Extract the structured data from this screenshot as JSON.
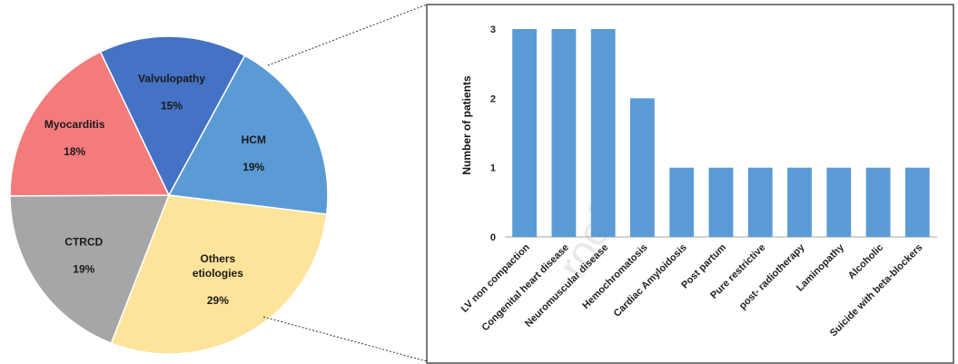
{
  "watermark": "roof",
  "chart_data": [
    {
      "type": "pie",
      "slices": [
        {
          "name_lines": [
            "HCM"
          ],
          "value": 19,
          "label": "19%",
          "color": "#5b9bd5"
        },
        {
          "name_lines": [
            "Others",
            "etiologies"
          ],
          "value": 29,
          "label": "29%",
          "color": "#fde49a"
        },
        {
          "name_lines": [
            "CTRCD"
          ],
          "value": 19,
          "label": "19%",
          "color": "#a6a6a6"
        },
        {
          "name_lines": [
            "Myocarditis"
          ],
          "value": 18,
          "label": "18%",
          "color": "#f47b7b"
        },
        {
          "name_lines": [
            "Valvulopathy"
          ],
          "value": 15,
          "label": "15%",
          "color": "#4472c4"
        }
      ]
    },
    {
      "type": "bar",
      "categories": [
        "LV non compaction",
        "Congenital heart disease",
        "Neuromuscular disease",
        "Hemochromatosis",
        "Cardiac Amyloidosis",
        "Post partum",
        "Pure restrictive",
        "post- radiotherapy",
        "Laminopathy",
        "Alcoholic",
        "Suicide with beta-blockers"
      ],
      "values": [
        3,
        3,
        3,
        2,
        1,
        1,
        1,
        1,
        1,
        1,
        1
      ],
      "ylabel": "Number of patients",
      "ylim": [
        0,
        3
      ],
      "yticks": [
        0,
        1,
        2,
        3
      ],
      "color": "#5b9bd5",
      "grid": false
    }
  ]
}
